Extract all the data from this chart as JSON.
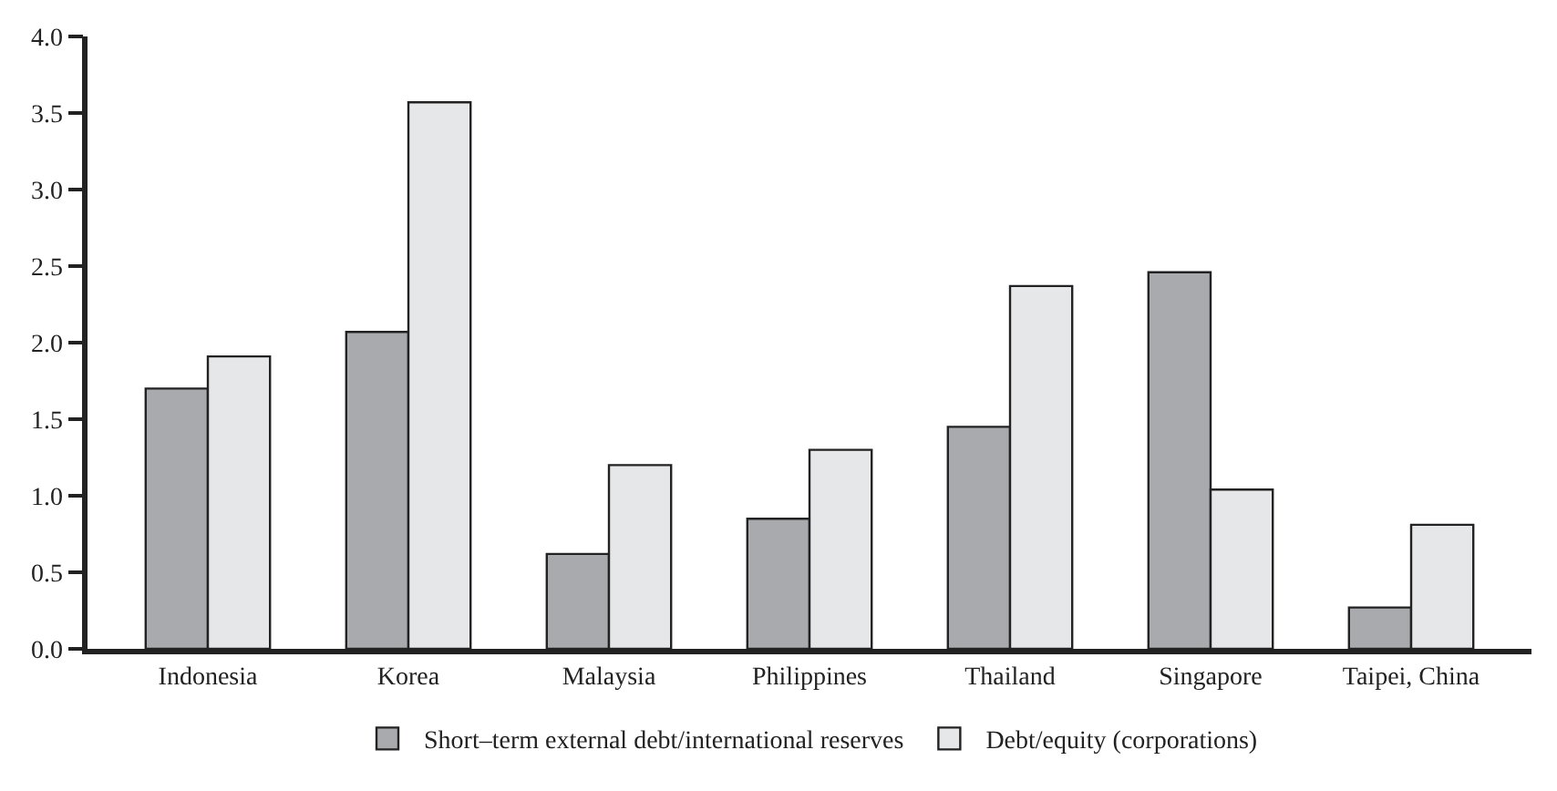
{
  "chart_data": {
    "type": "bar",
    "categories": [
      "Indonesia",
      "Korea",
      "Malaysia",
      "Philippines",
      "Thailand",
      "Singapore",
      "Taipei, China"
    ],
    "series": [
      {
        "name": "Short–term external debt/international reserves",
        "color": "#a9aaad",
        "values": [
          1.7,
          2.07,
          0.62,
          0.85,
          1.45,
          2.46,
          0.27
        ]
      },
      {
        "name": "Debt/equity (corporations)",
        "color": "#e6e7e9",
        "values": [
          1.91,
          3.57,
          1.2,
          1.3,
          2.37,
          1.04,
          0.81
        ]
      }
    ],
    "ylim": [
      0,
      4
    ],
    "yticks": [
      {
        "value": 0,
        "label": "0.0"
      },
      {
        "value": 0.5,
        "label": "0.5"
      },
      {
        "value": 1,
        "label": "1.0"
      },
      {
        "value": 1.5,
        "label": "1.5"
      },
      {
        "value": 2,
        "label": "2.0"
      },
      {
        "value": 2.5,
        "label": "2.5"
      },
      {
        "value": 3,
        "label": "3.0"
      },
      {
        "value": 3.5,
        "label": "3.5"
      },
      {
        "value": 4,
        "label": "4.0"
      }
    ],
    "grid": false,
    "legend": "bottom"
  }
}
